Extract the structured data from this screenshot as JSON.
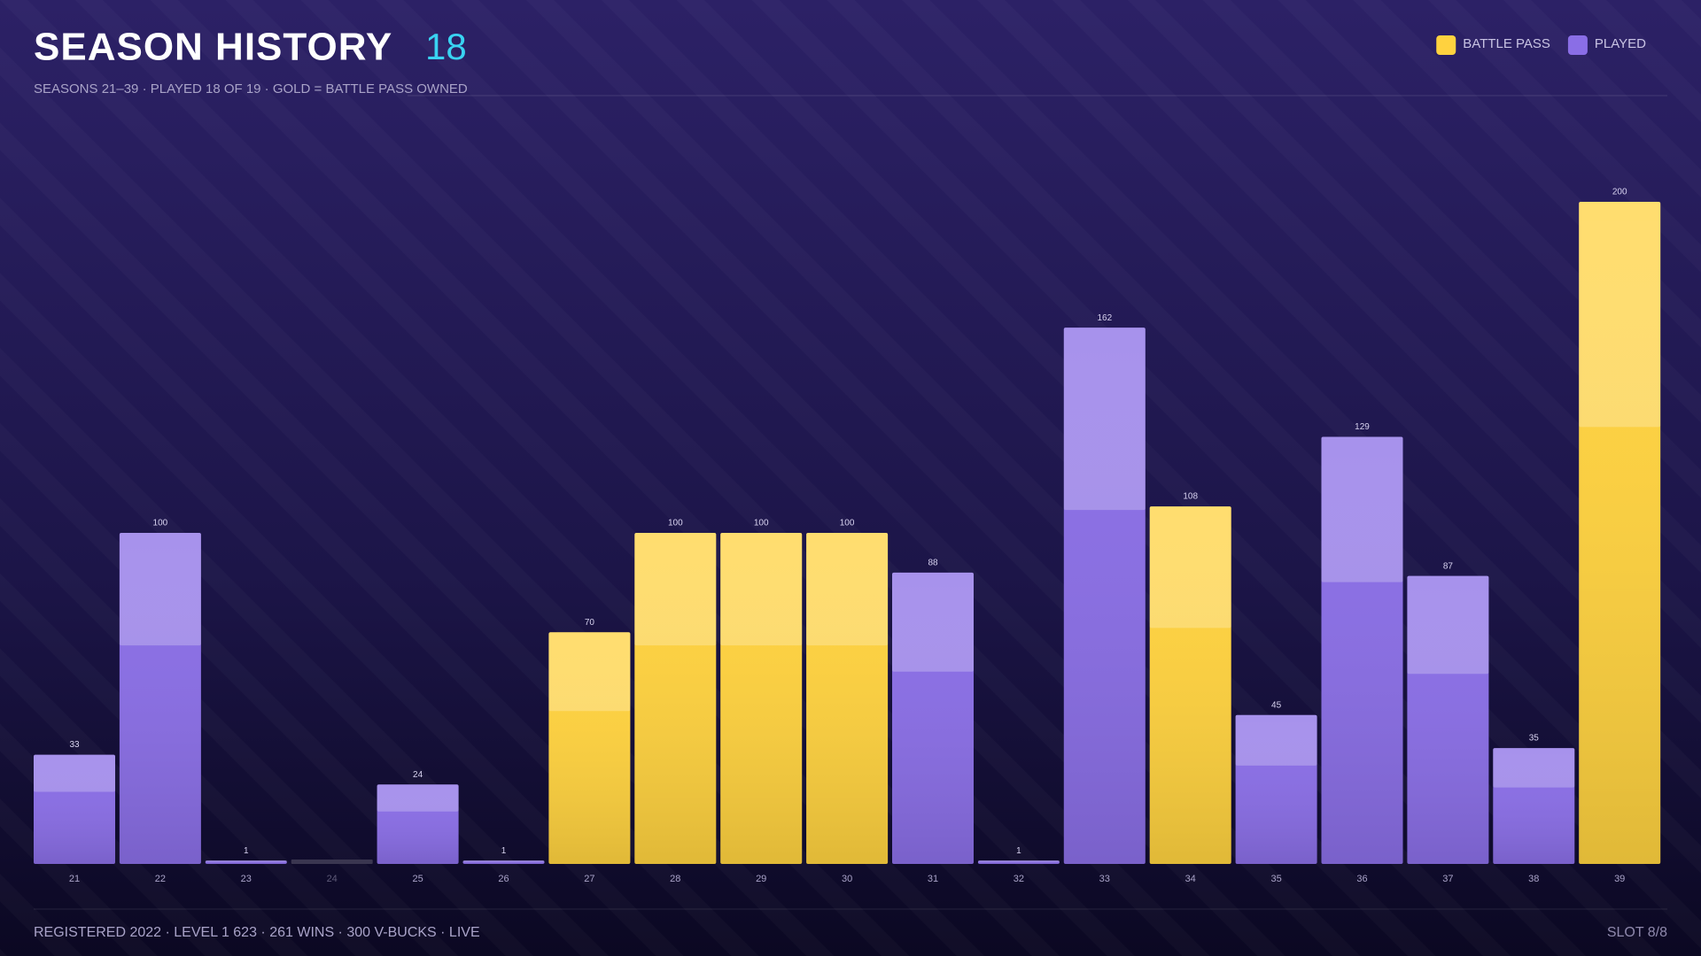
{
  "chart_data": {
    "type": "bar",
    "title": "SEASON HISTORY",
    "played_count": 18,
    "subtitle": "SEASONS 21–39 · PLAYED 18 OF 19 · GOLD = BATTLE PASS OWNED",
    "categories": [
      "21",
      "22",
      "23",
      "24",
      "25",
      "26",
      "27",
      "28",
      "29",
      "30",
      "31",
      "32",
      "33",
      "34",
      "35",
      "36",
      "37",
      "38",
      "39"
    ],
    "series": [
      {
        "name": "BATTLE PASS",
        "color": "#ffd23f",
        "values": [
          null,
          null,
          null,
          null,
          null,
          null,
          70,
          100,
          100,
          100,
          null,
          null,
          null,
          108,
          null,
          null,
          null,
          null,
          200
        ]
      },
      {
        "name": "PLAYED",
        "color": "#8a6ee6",
        "values": [
          33,
          100,
          1,
          null,
          24,
          1,
          null,
          null,
          null,
          null,
          88,
          1,
          162,
          null,
          45,
          129,
          87,
          35,
          null
        ]
      }
    ],
    "ylim": [
      0,
      200
    ],
    "legend": "top-right",
    "footer": "REGISTERED 2022 · LEVEL 1 623 · 261 WINS · 300 V-BUCKS · LIVE",
    "slot": "SLOT 8/8"
  }
}
